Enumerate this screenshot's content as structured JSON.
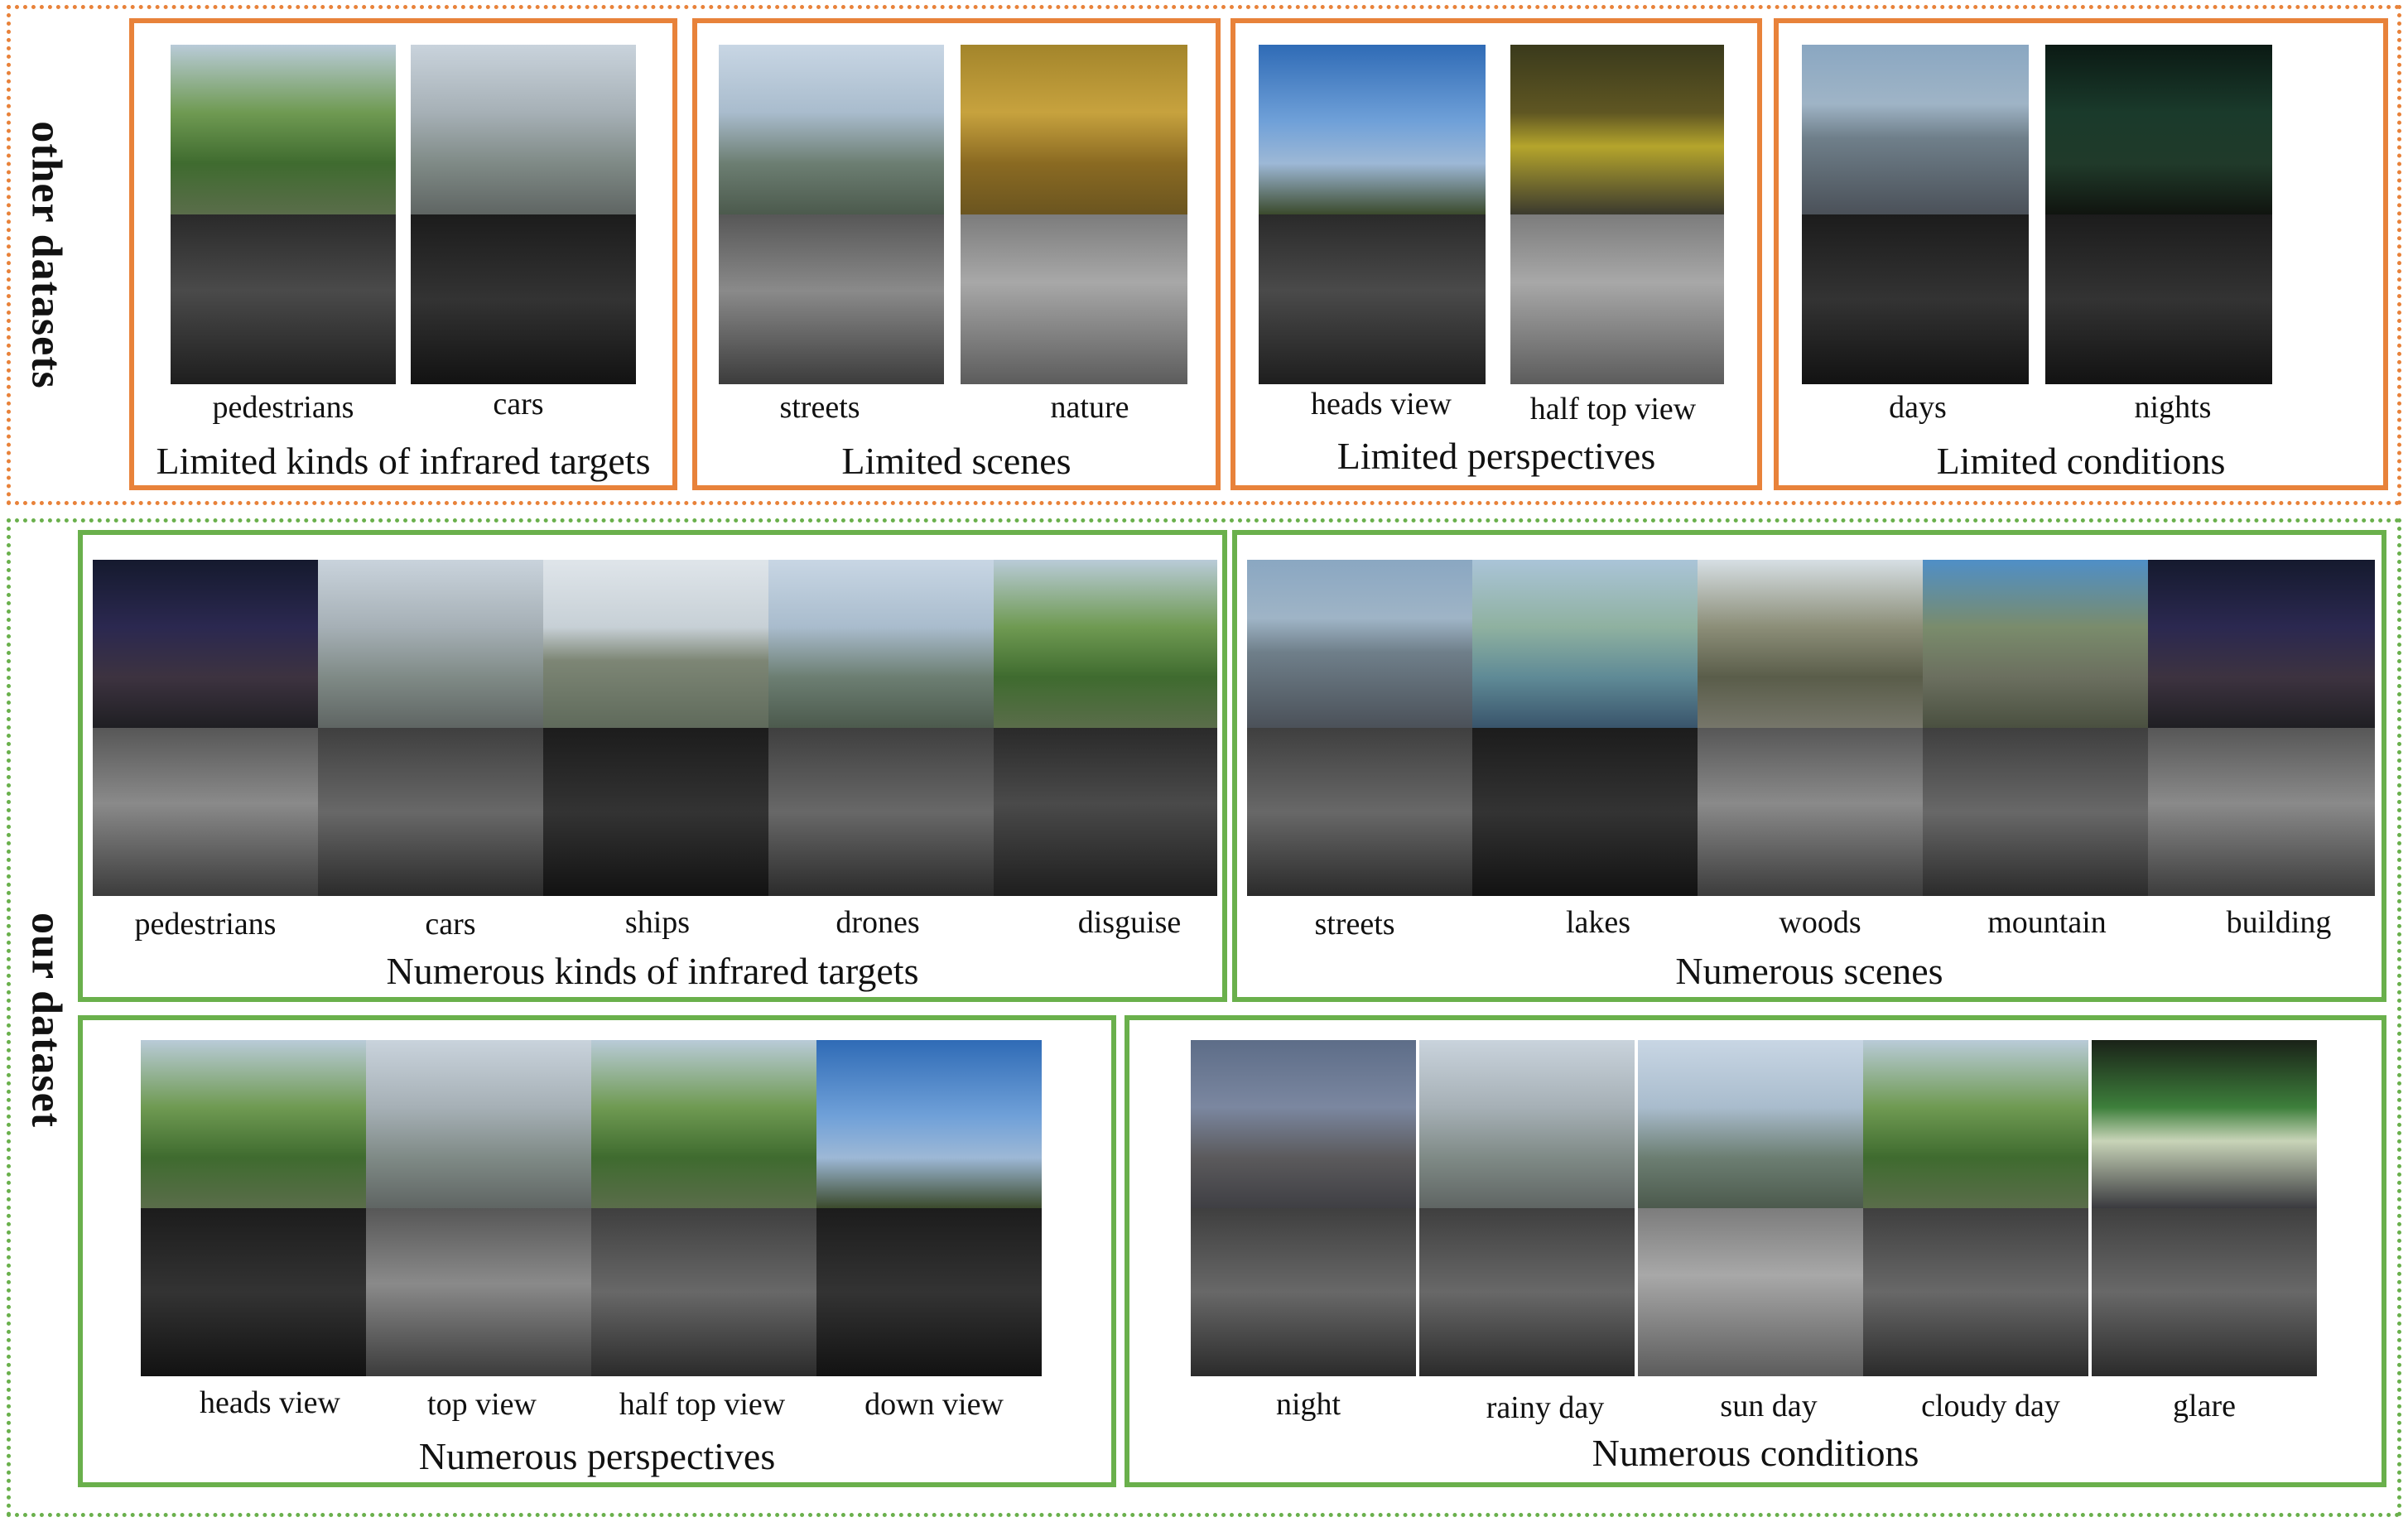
{
  "groups": {
    "other_label": "other datasets",
    "our_label": "our dataset"
  },
  "other_panels": [
    {
      "title": "Limited kinds of infrared targets",
      "labels": [
        "pedestrians",
        "cars"
      ]
    },
    {
      "title": "Limited scenes",
      "labels": [
        "streets",
        "nature"
      ]
    },
    {
      "title": "Limited perspectives",
      "labels": [
        "heads view",
        "half top view"
      ]
    },
    {
      "title": "Limited conditions",
      "labels": [
        "days",
        "nights"
      ]
    }
  ],
  "our_panels": [
    {
      "title": "Numerous  kinds of infrared targets",
      "labels": [
        "pedestrians",
        "cars",
        "ships",
        "drones",
        "disguise"
      ]
    },
    {
      "title": "Numerous scenes",
      "labels": [
        "streets",
        "lakes",
        "woods",
        "mountain",
        "building"
      ]
    },
    {
      "title": "Numerous perspectives",
      "labels": [
        "heads view",
        "top view",
        "half top view",
        "down view"
      ]
    },
    {
      "title": "Numerous conditions",
      "labels": [
        "night",
        "rainy day",
        "sun day",
        "cloudy day",
        "glare"
      ]
    }
  ],
  "colors": {
    "other_border": "#e8823a",
    "our_border": "#6ab04c"
  }
}
